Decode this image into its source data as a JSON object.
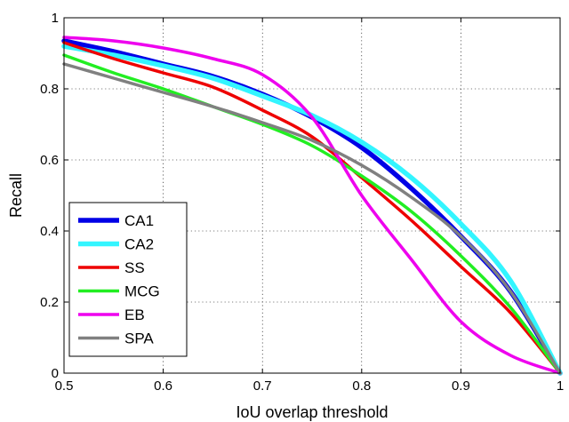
{
  "chart_data": {
    "type": "line",
    "xlabel": "IoU overlap threshold",
    "ylabel": "Recall",
    "xlim": [
      0.5,
      1
    ],
    "ylim": [
      0,
      1
    ],
    "xticks": [
      "0.5",
      "0.6",
      "0.7",
      "0.8",
      "0.9",
      "1"
    ],
    "yticks": [
      "0",
      "0.2",
      "0.4",
      "0.6",
      "0.8",
      "1"
    ],
    "grid": true,
    "legend_position": "bottom-left",
    "x": [
      0.5,
      0.55,
      0.6,
      0.65,
      0.7,
      0.75,
      0.8,
      0.85,
      0.9,
      0.95,
      1.0
    ],
    "series": [
      {
        "name": "CA1",
        "color": "#0000e6",
        "width": 5.5,
        "values": [
          0.935,
          0.905,
          0.87,
          0.835,
          0.785,
          0.72,
          0.635,
          0.52,
          0.385,
          0.23,
          0.0
        ]
      },
      {
        "name": "CA2",
        "color": "#33f5ff",
        "width": 5.5,
        "values": [
          0.92,
          0.895,
          0.865,
          0.83,
          0.78,
          0.725,
          0.65,
          0.55,
          0.42,
          0.26,
          0.0
        ]
      },
      {
        "name": "SS",
        "color": "#ee0000",
        "width": 3.5,
        "values": [
          0.93,
          0.885,
          0.845,
          0.805,
          0.74,
          0.665,
          0.55,
          0.43,
          0.3,
          0.17,
          0.0
        ]
      },
      {
        "name": "MCG",
        "color": "#22ee22",
        "width": 3.5,
        "values": [
          0.895,
          0.845,
          0.8,
          0.75,
          0.7,
          0.64,
          0.555,
          0.455,
          0.33,
          0.185,
          0.0
        ]
      },
      {
        "name": "EB",
        "color": "#ee00ee",
        "width": 3.5,
        "values": [
          0.945,
          0.935,
          0.915,
          0.885,
          0.84,
          0.72,
          0.5,
          0.32,
          0.145,
          0.05,
          0.0
        ]
      },
      {
        "name": "SPA",
        "color": "#808080",
        "width": 3.5,
        "values": [
          0.87,
          0.83,
          0.79,
          0.75,
          0.705,
          0.655,
          0.585,
          0.495,
          0.385,
          0.23,
          0.0
        ]
      }
    ]
  }
}
